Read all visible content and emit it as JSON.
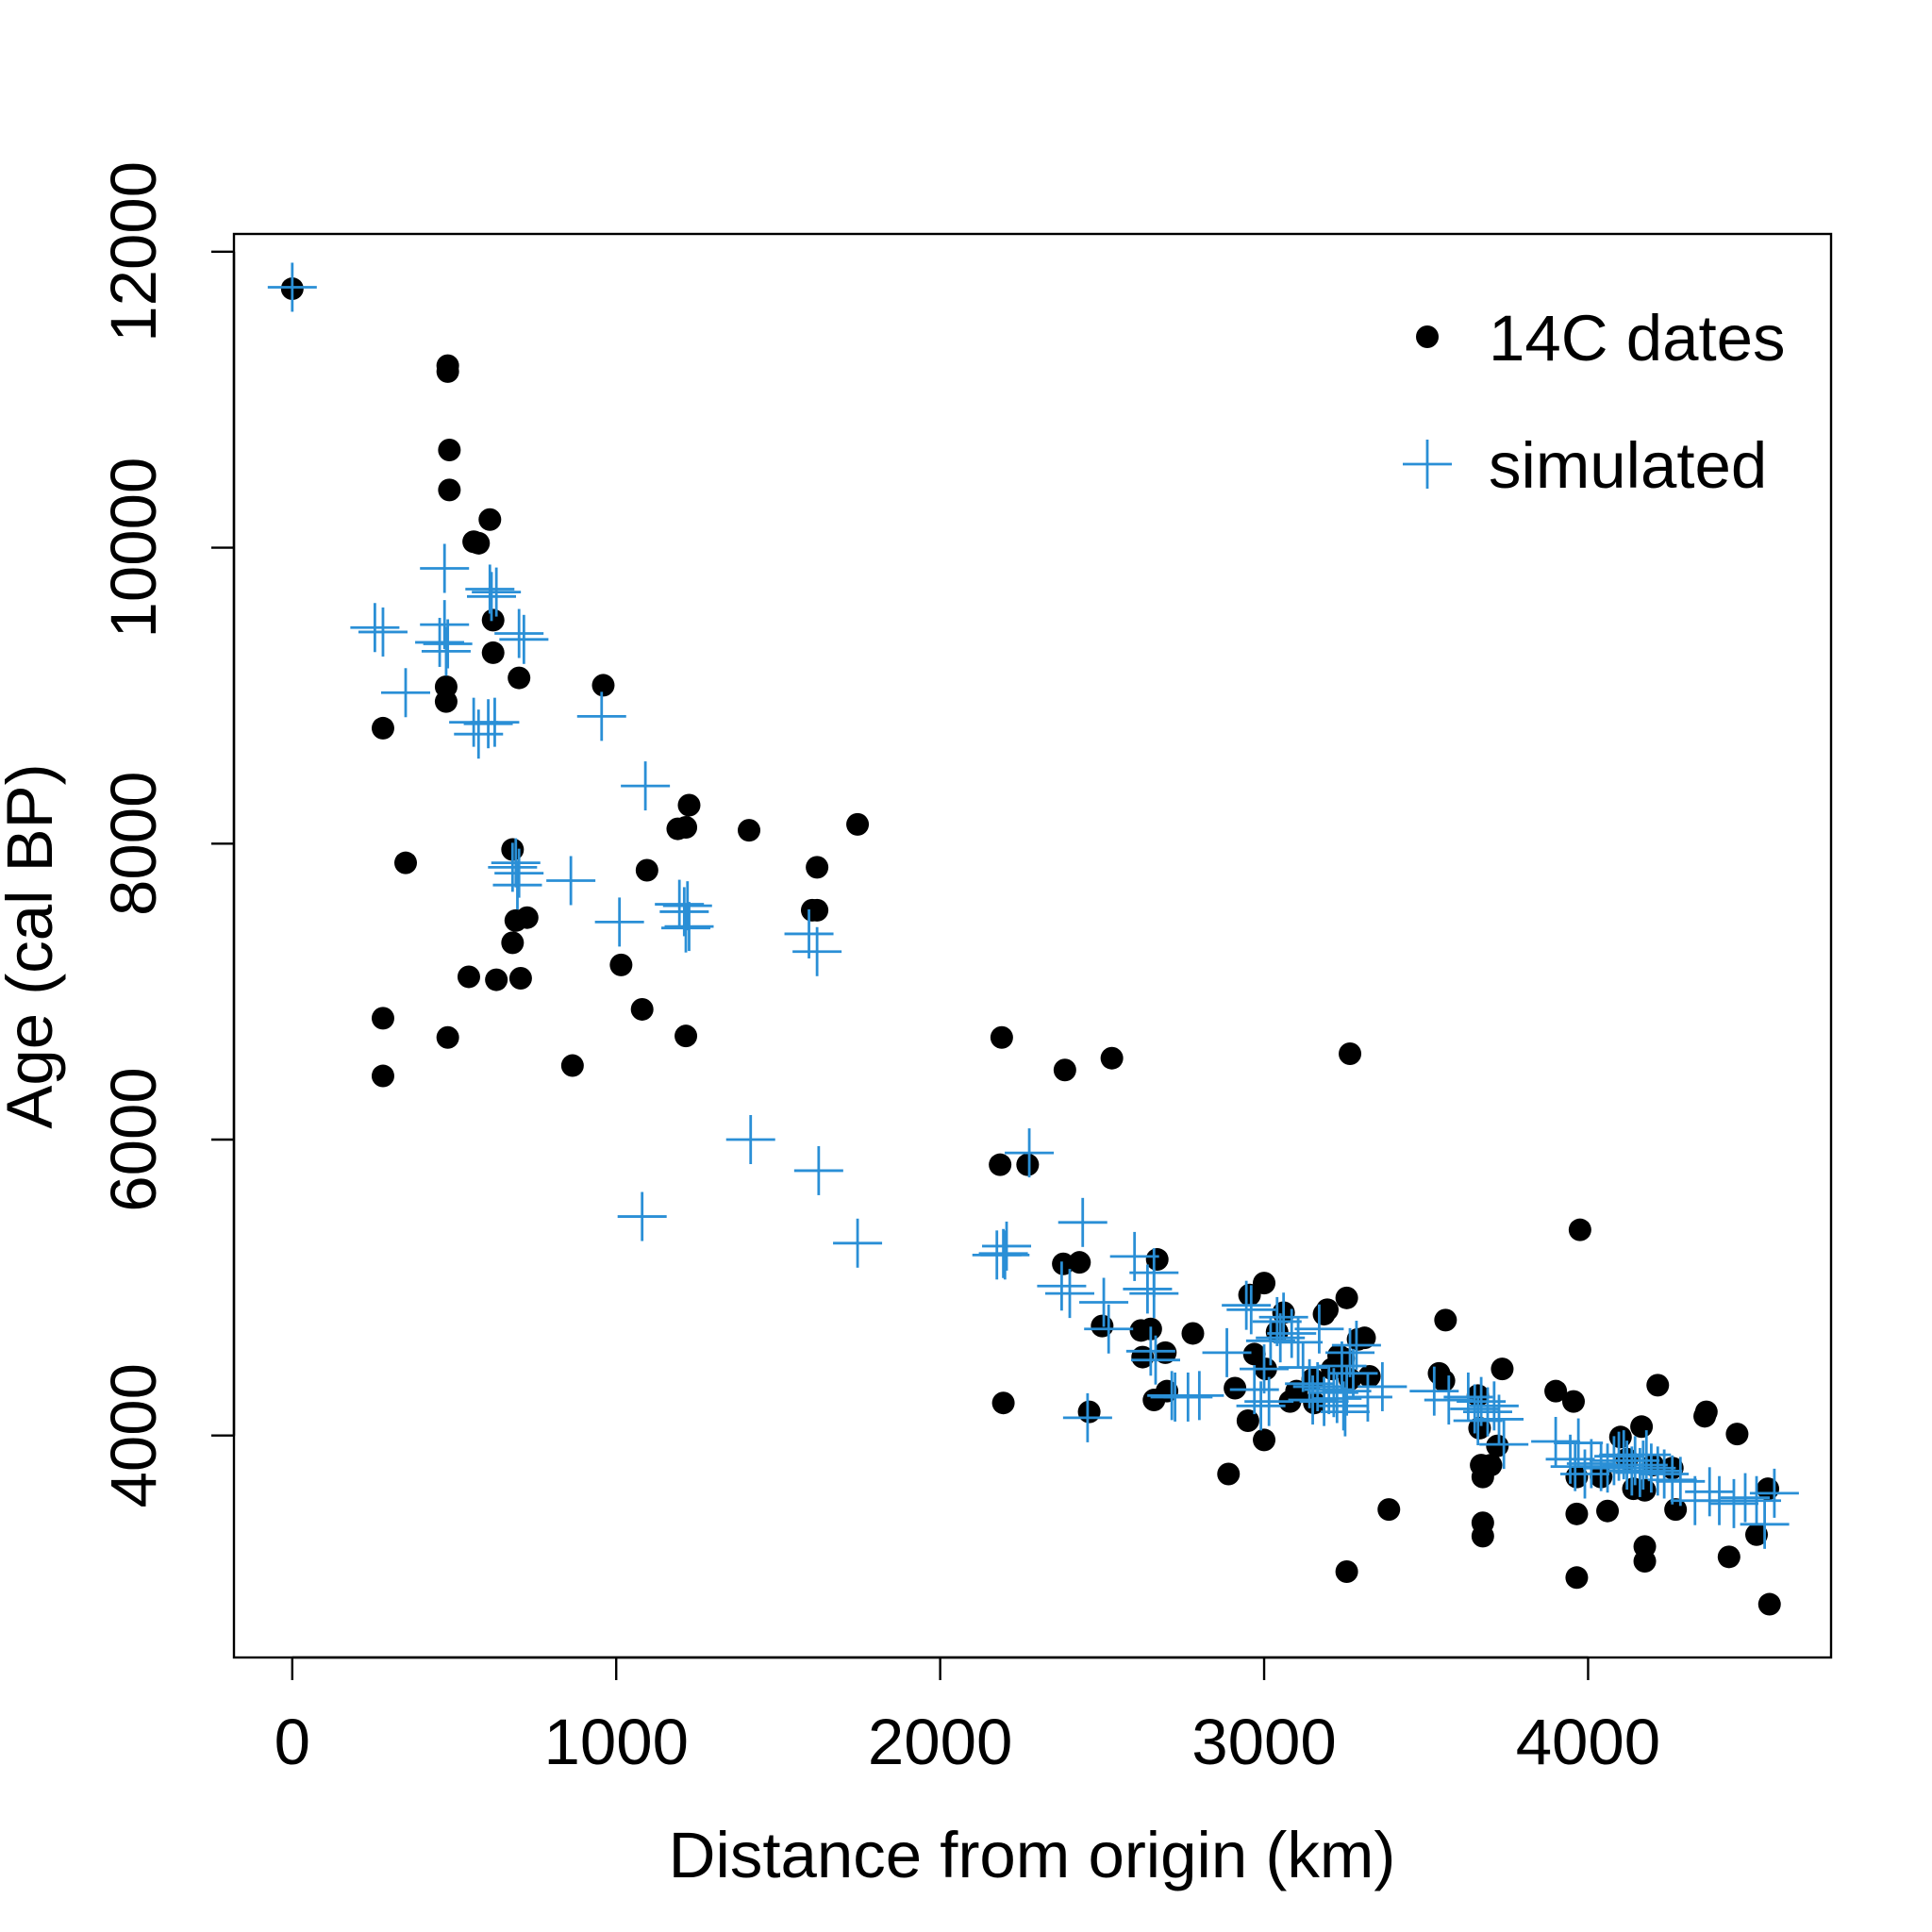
{
  "chart_data": {
    "type": "scatter",
    "title": "",
    "xlabel": "Distance from origin (km)",
    "ylabel": "Age (cal BP)",
    "xlim": [
      -180,
      4750
    ],
    "ylim": [
      2500,
      12120
    ],
    "x_ticks": [
      "0",
      "1000",
      "2000",
      "3000",
      "4000"
    ],
    "y_ticks": [
      "4000",
      "6000",
      "8000",
      "10000",
      "12000"
    ],
    "grid": false,
    "legend_position": "top-right",
    "series": [
      {
        "name": "14C dates",
        "marker": "filled-circle",
        "color": "#000000",
        "points": [
          [
            0,
            11750
          ],
          [
            480,
            11230
          ],
          [
            480,
            11190
          ],
          [
            485,
            10660
          ],
          [
            485,
            10390
          ],
          [
            560,
            10040
          ],
          [
            575,
            10030
          ],
          [
            610,
            10190
          ],
          [
            620,
            9510
          ],
          [
            620,
            9290
          ],
          [
            280,
            8780
          ],
          [
            475,
            9060
          ],
          [
            475,
            8960
          ],
          [
            700,
            9120
          ],
          [
            960,
            9070
          ],
          [
            350,
            7870
          ],
          [
            680,
            7960
          ],
          [
            680,
            7330
          ],
          [
            690,
            7480
          ],
          [
            725,
            7500
          ],
          [
            545,
            7100
          ],
          [
            630,
            7080
          ],
          [
            705,
            7090
          ],
          [
            1095,
            7820
          ],
          [
            1190,
            8100
          ],
          [
            1215,
            8110
          ],
          [
            1225,
            8260
          ],
          [
            1410,
            8090
          ],
          [
            1620,
            7840
          ],
          [
            1605,
            7550
          ],
          [
            1620,
            7550
          ],
          [
            1745,
            8130
          ],
          [
            1015,
            7180
          ],
          [
            1080,
            6880
          ],
          [
            1215,
            6700
          ],
          [
            480,
            6690
          ],
          [
            280,
            6820
          ],
          [
            280,
            6430
          ],
          [
            865,
            6500
          ],
          [
            2190,
            6690
          ],
          [
            2185,
            5830
          ],
          [
            2270,
            5830
          ],
          [
            2385,
            6470
          ],
          [
            2530,
            6550
          ],
          [
            3265,
            6580
          ],
          [
            2380,
            5160
          ],
          [
            2430,
            5170
          ],
          [
            2195,
            4220
          ],
          [
            2460,
            4160
          ],
          [
            2500,
            4740
          ],
          [
            2620,
            4710
          ],
          [
            2650,
            4720
          ],
          [
            2625,
            4530
          ],
          [
            2660,
            4240
          ],
          [
            2695,
            4560
          ],
          [
            2700,
            4300
          ],
          [
            2670,
            5190
          ],
          [
            2780,
            4690
          ],
          [
            2890,
            3740
          ],
          [
            2910,
            4320
          ],
          [
            2950,
            4100
          ],
          [
            2955,
            4950
          ],
          [
            2970,
            4550
          ],
          [
            3000,
            5030
          ],
          [
            3000,
            3970
          ],
          [
            3005,
            4450
          ],
          [
            3040,
            4700
          ],
          [
            3060,
            4830
          ],
          [
            3080,
            4230
          ],
          [
            3100,
            4300
          ],
          [
            3150,
            4380
          ],
          [
            3155,
            4220
          ],
          [
            3185,
            4820
          ],
          [
            3195,
            4850
          ],
          [
            3210,
            4450
          ],
          [
            3230,
            4540
          ],
          [
            3245,
            4520
          ],
          [
            3255,
            4930
          ],
          [
            3265,
            4380
          ],
          [
            3290,
            4650
          ],
          [
            3310,
            4660
          ],
          [
            3325,
            4400
          ],
          [
            3255,
            3080
          ],
          [
            3385,
            3500
          ],
          [
            3540,
            4420
          ],
          [
            3555,
            4370
          ],
          [
            3560,
            4780
          ],
          [
            3660,
            4270
          ],
          [
            3665,
            4050
          ],
          [
            3670,
            3800
          ],
          [
            3675,
            3720
          ],
          [
            3675,
            3410
          ],
          [
            3675,
            3320
          ],
          [
            3700,
            3800
          ],
          [
            3720,
            3930
          ],
          [
            3735,
            4450
          ],
          [
            3900,
            4300
          ],
          [
            3955,
            4230
          ],
          [
            3975,
            5390
          ],
          [
            3965,
            3720
          ],
          [
            3965,
            3470
          ],
          [
            3965,
            3040
          ],
          [
            4040,
            3720
          ],
          [
            4060,
            3490
          ],
          [
            4100,
            3990
          ],
          [
            4120,
            3840
          ],
          [
            4140,
            3640
          ],
          [
            4165,
            4060
          ],
          [
            4175,
            3630
          ],
          [
            4175,
            3250
          ],
          [
            4175,
            3150
          ],
          [
            4200,
            3800
          ],
          [
            4215,
            4340
          ],
          [
            4260,
            3780
          ],
          [
            4270,
            3500
          ],
          [
            4360,
            4130
          ],
          [
            4365,
            4160
          ],
          [
            4435,
            3180
          ],
          [
            4460,
            4010
          ],
          [
            4520,
            3330
          ],
          [
            4555,
            3640
          ],
          [
            4560,
            2860
          ]
        ]
      },
      {
        "name": "simulated",
        "marker": "plus",
        "color": "#2a8fd6",
        "points": [
          [
            0,
            11760
          ],
          [
            255,
            9460
          ],
          [
            280,
            9430
          ],
          [
            350,
            9020
          ],
          [
            455,
            9360
          ],
          [
            470,
            9480
          ],
          [
            470,
            9860
          ],
          [
            475,
            9300
          ],
          [
            480,
            9350
          ],
          [
            560,
            8820
          ],
          [
            575,
            8740
          ],
          [
            605,
            8810
          ],
          [
            610,
            9720
          ],
          [
            615,
            9670
          ],
          [
            625,
            8820
          ],
          [
            630,
            9700
          ],
          [
            700,
            9420
          ],
          [
            715,
            9380
          ],
          [
            955,
            8860
          ],
          [
            1090,
            8390
          ],
          [
            690,
            7870
          ],
          [
            680,
            7840
          ],
          [
            700,
            7800
          ],
          [
            695,
            7720
          ],
          [
            860,
            7750
          ],
          [
            1010,
            7470
          ],
          [
            1195,
            7590
          ],
          [
            1220,
            7580
          ],
          [
            1215,
            7430
          ],
          [
            1210,
            7540
          ],
          [
            1225,
            7440
          ],
          [
            1595,
            7390
          ],
          [
            1620,
            7270
          ],
          [
            1415,
            6000
          ],
          [
            1625,
            5790
          ],
          [
            1080,
            5480
          ],
          [
            1745,
            5300
          ],
          [
            2175,
            5220
          ],
          [
            2195,
            5230
          ],
          [
            2200,
            5220
          ],
          [
            2205,
            5280
          ],
          [
            2275,
            5910
          ],
          [
            2375,
            5010
          ],
          [
            2440,
            5440
          ],
          [
            2400,
            4960
          ],
          [
            2455,
            4120
          ],
          [
            2505,
            4900
          ],
          [
            2520,
            4720
          ],
          [
            2600,
            5210
          ],
          [
            2640,
            4990
          ],
          [
            2660,
            4960
          ],
          [
            2660,
            5100
          ],
          [
            2650,
            4570
          ],
          [
            2665,
            4510
          ],
          [
            2715,
            4270
          ],
          [
            2725,
            4260
          ],
          [
            2765,
            4260
          ],
          [
            2800,
            4270
          ],
          [
            2885,
            4560
          ],
          [
            2945,
            4880
          ],
          [
            2960,
            4850
          ],
          [
            2970,
            4310
          ],
          [
            2990,
            4200
          ],
          [
            3000,
            4450
          ],
          [
            3015,
            4230
          ],
          [
            3020,
            4640
          ],
          [
            3040,
            4770
          ],
          [
            3050,
            4660
          ],
          [
            3060,
            4800
          ],
          [
            3085,
            4690
          ],
          [
            3105,
            4630
          ],
          [
            3120,
            4460
          ],
          [
            3140,
            4350
          ],
          [
            3150,
            4240
          ],
          [
            3165,
            4330
          ],
          [
            3170,
            4720
          ],
          [
            3185,
            4230
          ],
          [
            3200,
            4310
          ],
          [
            3215,
            4290
          ],
          [
            3225,
            4250
          ],
          [
            3240,
            4470
          ],
          [
            3245,
            4200
          ],
          [
            3250,
            4160
          ],
          [
            3255,
            4300
          ],
          [
            3265,
            4560
          ],
          [
            3275,
            4420
          ],
          [
            3285,
            4610
          ],
          [
            3320,
            4260
          ],
          [
            3365,
            4330
          ],
          [
            3525,
            4300
          ],
          [
            3570,
            4240
          ],
          [
            3630,
            4260
          ],
          [
            3650,
            4180
          ],
          [
            3660,
            4100
          ],
          [
            3670,
            4230
          ],
          [
            3690,
            4160
          ],
          [
            3710,
            4200
          ],
          [
            3725,
            4110
          ],
          [
            3740,
            3940
          ],
          [
            3900,
            3960
          ],
          [
            3945,
            3840
          ],
          [
            3960,
            3790
          ],
          [
            3970,
            3950
          ],
          [
            3990,
            3740
          ],
          [
            4010,
            3810
          ],
          [
            4040,
            3790
          ],
          [
            4060,
            3780
          ],
          [
            4080,
            3830
          ],
          [
            4095,
            3860
          ],
          [
            4110,
            3870
          ],
          [
            4120,
            3800
          ],
          [
            4135,
            3760
          ],
          [
            4145,
            3830
          ],
          [
            4160,
            3750
          ],
          [
            4170,
            3800
          ],
          [
            4180,
            3870
          ],
          [
            4195,
            3780
          ],
          [
            4215,
            3760
          ],
          [
            4235,
            3740
          ],
          [
            4260,
            3700
          ],
          [
            4285,
            3690
          ],
          [
            4330,
            3560
          ],
          [
            4375,
            3620
          ],
          [
            4405,
            3560
          ],
          [
            4450,
            3540
          ],
          [
            4485,
            3580
          ],
          [
            4520,
            3560
          ],
          [
            4545,
            3400
          ],
          [
            4575,
            3610
          ]
        ]
      }
    ]
  }
}
